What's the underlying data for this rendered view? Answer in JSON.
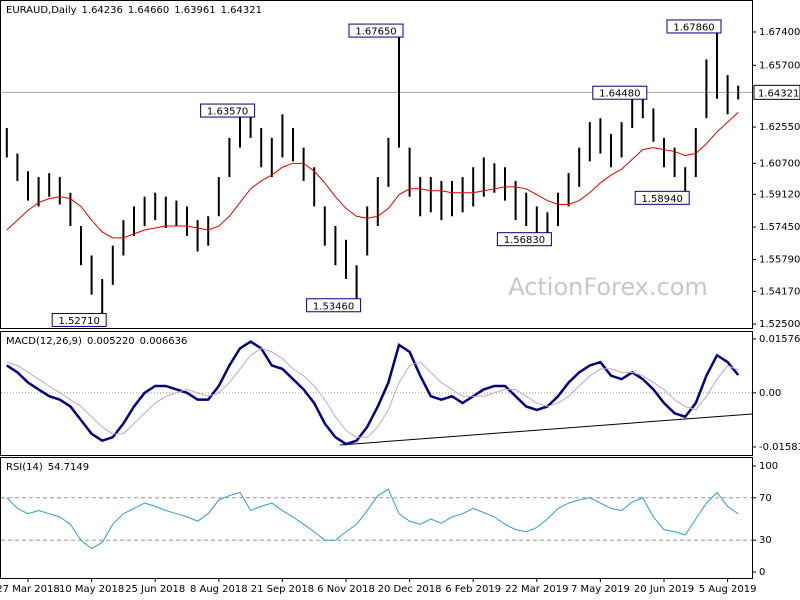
{
  "watermark": "ActionForex.com",
  "chart_data": [
    {
      "type": "ohlc",
      "title": "EURAUD,Daily",
      "last_bar": [
        "1.64236",
        "1.64660",
        "1.63961",
        "1.64321"
      ],
      "categories": [
        null,
        null,
        "27 Mar 2018",
        null,
        null,
        null,
        null,
        null,
        "10 May 2018",
        null,
        null,
        null,
        null,
        null,
        "25 Jun 2018",
        null,
        null,
        null,
        null,
        null,
        "8 Aug 2018",
        null,
        null,
        null,
        null,
        null,
        "21 Sep 2018",
        null,
        null,
        null,
        null,
        null,
        "6 Nov 2018",
        null,
        null,
        null,
        null,
        null,
        "20 Dec 2018",
        null,
        null,
        null,
        null,
        null,
        "6 Feb 2019",
        null,
        null,
        null,
        null,
        null,
        "22 Mar 2019",
        null,
        null,
        null,
        null,
        null,
        "7 May 2019",
        null,
        null,
        null,
        null,
        null,
        "20 Jun 2019",
        null,
        null,
        null,
        null,
        null,
        "5 Aug 2019",
        null
      ],
      "high": [
        1.625,
        1.612,
        1.603,
        1.6,
        1.602,
        1.6,
        1.592,
        1.575,
        1.56,
        1.548,
        1.565,
        1.578,
        1.585,
        1.59,
        1.592,
        1.59,
        1.588,
        1.585,
        1.578,
        1.58,
        1.6,
        1.62,
        1.634,
        1.6357,
        1.625,
        1.62,
        1.632,
        1.625,
        1.615,
        1.605,
        1.585,
        1.575,
        1.568,
        1.555,
        1.585,
        1.6,
        1.62,
        1.6765,
        1.615,
        1.6,
        1.6,
        1.598,
        1.598,
        1.6,
        1.605,
        1.61,
        1.607,
        1.605,
        1.598,
        1.592,
        1.585,
        1.582,
        1.592,
        1.602,
        1.615,
        1.628,
        1.63,
        1.622,
        1.628,
        1.64,
        1.6448,
        1.635,
        1.62,
        1.615,
        1.605,
        1.625,
        1.66,
        1.6786,
        1.652,
        1.6466
      ],
      "low": [
        1.61,
        1.598,
        1.588,
        1.585,
        1.59,
        1.586,
        1.575,
        1.555,
        1.54,
        1.5271,
        1.545,
        1.56,
        1.57,
        1.575,
        1.578,
        1.574,
        1.575,
        1.57,
        1.562,
        1.565,
        1.58,
        1.6,
        1.615,
        1.62,
        1.605,
        1.6,
        1.61,
        1.608,
        1.598,
        1.585,
        1.565,
        1.555,
        1.548,
        1.5346,
        1.56,
        1.575,
        1.595,
        1.615,
        1.59,
        1.58,
        1.582,
        1.578,
        1.58,
        1.582,
        1.585,
        1.59,
        1.592,
        1.588,
        1.578,
        1.575,
        1.57,
        1.5683,
        1.575,
        1.585,
        1.595,
        1.608,
        1.612,
        1.605,
        1.61,
        1.625,
        1.63,
        1.618,
        1.605,
        1.6,
        1.5894,
        1.6,
        1.63,
        1.64,
        1.632,
        1.63961
      ],
      "bar_color": "#000000",
      "ma": {
        "color": "#dd0000",
        "values": [
          1.573,
          1.578,
          1.583,
          1.587,
          1.589,
          1.59,
          1.589,
          1.585,
          1.578,
          1.572,
          1.569,
          1.569,
          1.571,
          1.573,
          1.574,
          1.575,
          1.575,
          1.575,
          1.574,
          1.573,
          1.575,
          1.58,
          1.587,
          1.594,
          1.598,
          1.601,
          1.605,
          1.607,
          1.607,
          1.603,
          1.597,
          1.59,
          1.584,
          1.58,
          1.579,
          1.58,
          1.584,
          1.591,
          1.594,
          1.594,
          1.593,
          1.593,
          1.592,
          1.592,
          1.592,
          1.593,
          1.594,
          1.595,
          1.595,
          1.594,
          1.591,
          1.588,
          1.586,
          1.586,
          1.588,
          1.592,
          1.597,
          1.601,
          1.604,
          1.609,
          1.614,
          1.615,
          1.614,
          1.613,
          1.611,
          1.612,
          1.617,
          1.623,
          1.628,
          1.633
        ]
      },
      "annotations": [
        {
          "value": 1.5271,
          "label": "1.52710"
        },
        {
          "value": 1.6357,
          "label": "1.63570"
        },
        {
          "value": 1.6765,
          "label": "1.67650"
        },
        {
          "value": 1.5346,
          "label": "1.53460"
        },
        {
          "value": 1.5683,
          "label": "1.56830"
        },
        {
          "value": 1.6448,
          "label": "1.64480"
        },
        {
          "value": 1.5894,
          "label": "1.58940"
        },
        {
          "value": 1.6786,
          "label": "1.67860"
        }
      ],
      "current": {
        "value": 1.64321,
        "label": "1.64321"
      },
      "ylim": [
        1.523,
        1.6898
      ],
      "yticks": [
        {
          "value": 1.674,
          "label": "1.67400"
        },
        {
          "value": 1.657,
          "label": "1.65700"
        },
        {
          "value": 1.6255,
          "label": "1.62550"
        },
        {
          "value": 1.607,
          "label": "1.60700"
        },
        {
          "value": 1.5912,
          "label": "1.59120"
        },
        {
          "value": 1.5745,
          "label": "1.57450"
        },
        {
          "value": 1.5579,
          "label": "1.55790"
        },
        {
          "value": 1.5417,
          "label": "1.54170"
        },
        {
          "value": 1.525,
          "label": "1.52500"
        }
      ]
    },
    {
      "type": "line",
      "title": "MACD(12,26,9)",
      "readout": [
        "0.005220",
        "0.006636"
      ],
      "series": [
        {
          "color": "#000080",
          "values": [
            0.008,
            0.006,
            0.003,
            0.001,
            -0.001,
            -0.002,
            -0.004,
            -0.008,
            -0.012,
            -0.014,
            -0.013,
            -0.009,
            -0.004,
            0,
            0.002,
            0.002,
            0.001,
            0,
            -0.002,
            -0.002,
            0.002,
            0.008,
            0.013,
            0.015,
            0.013,
            0.008,
            0.007,
            0.004,
            0.001,
            -0.003,
            -0.009,
            -0.013,
            -0.015,
            -0.014,
            -0.01,
            -0.004,
            0.003,
            0.014,
            0.012,
            0.005,
            -0.001,
            -0.002,
            -0.001,
            -0.003,
            -0.001,
            0.001,
            0.002,
            0.002,
            -0.001,
            -0.004,
            -0.005,
            -0.004,
            -0.001,
            0.003,
            0.006,
            0.008,
            0.009,
            0.005,
            0.004,
            0.006,
            0.004,
            0.001,
            -0.003,
            -0.006,
            -0.007,
            -0.003,
            0.005,
            0.011,
            0.009,
            0.00522
          ]
        },
        {
          "color": "#c9a0c9",
          "values": [
            0.009,
            0.008,
            0.006,
            0.004,
            0.002,
            0,
            -0.002,
            -0.004,
            -0.007,
            -0.01,
            -0.012,
            -0.012,
            -0.009,
            -0.006,
            -0.003,
            -0.001,
            0,
            0.001,
            0,
            -0.001,
            0,
            0.003,
            0.007,
            0.011,
            0.013,
            0.012,
            0.01,
            0.007,
            0.005,
            0.002,
            -0.002,
            -0.007,
            -0.011,
            -0.013,
            -0.013,
            -0.01,
            -0.005,
            0.003,
            0.008,
            0.009,
            0.006,
            0.003,
            0.001,
            -0.001,
            -0.001,
            -0.001,
            0,
            0.001,
            0.001,
            -0.001,
            -0.003,
            -0.004,
            -0.003,
            -0.001,
            0.002,
            0.005,
            0.007,
            0.007,
            0.006,
            0.006,
            0.005,
            0.003,
            0.001,
            -0.002,
            -0.004,
            -0.005,
            -0.001,
            0.004,
            0.008,
            0.006636
          ]
        }
      ],
      "levels": [
        0
      ],
      "ylim": [
        -0.0182,
        0.0178
      ],
      "yticks": [
        0.015762,
        {
          "value": 0,
          "label": "0.00"
        },
        -0.015834
      ]
    },
    {
      "type": "line",
      "title": "RSI(14)",
      "readout": [
        "54.7149"
      ],
      "series": [
        {
          "color": "#3399dd",
          "values": [
            70,
            60,
            55,
            58,
            55,
            52,
            45,
            30,
            22,
            28,
            45,
            55,
            60,
            65,
            62,
            58,
            55,
            52,
            48,
            55,
            68,
            72,
            75,
            58,
            62,
            65,
            58,
            52,
            45,
            38,
            30,
            30,
            38,
            45,
            58,
            72,
            78,
            55,
            48,
            45,
            50,
            46,
            52,
            55,
            60,
            56,
            52,
            45,
            40,
            38,
            42,
            50,
            60,
            65,
            68,
            70,
            65,
            60,
            58,
            66,
            70,
            52,
            40,
            38,
            35,
            50,
            65,
            75,
            62,
            54.7149
          ]
        }
      ],
      "levels": [
        30,
        70
      ],
      "ylim": [
        -5.6,
        107.5
      ],
      "yticks": [
        0,
        30,
        70,
        100
      ]
    }
  ]
}
